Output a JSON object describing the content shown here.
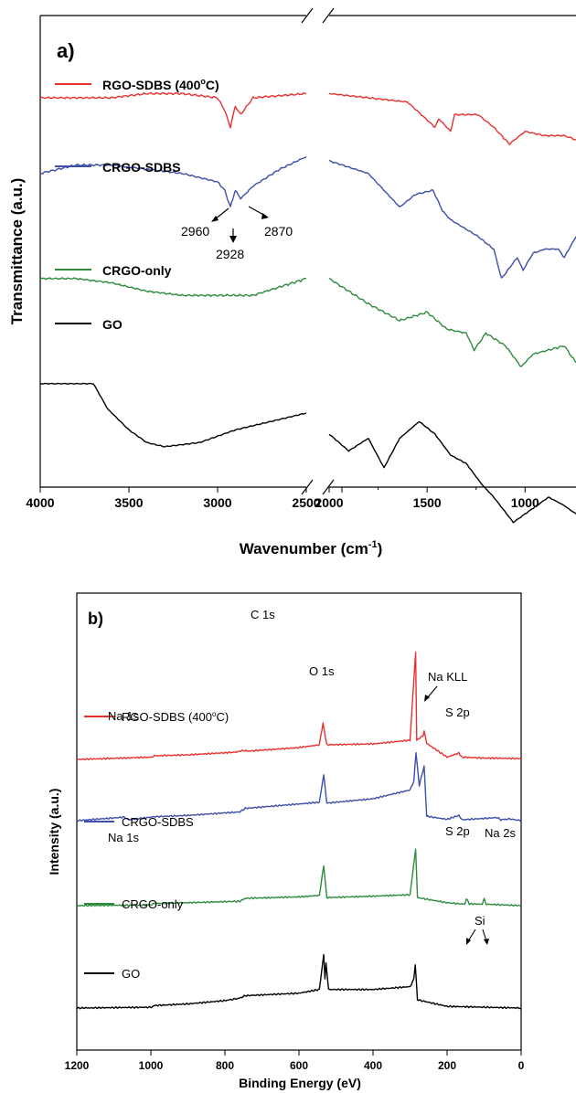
{
  "chart_data": [
    {
      "type": "line",
      "panel_label": "a)",
      "xlabel_main": "Wavenumber (cm",
      "xlabel_sup": "-1",
      "xlabel_end": ")",
      "ylabel": "Transmittance (a.u.)",
      "x_ticks_left": [
        "4000",
        "3500",
        "3000",
        "2500"
      ],
      "x_ticks_right": [
        "2500",
        "2000",
        "1500",
        "1000"
      ],
      "xlim_left": [
        4000,
        2500
      ],
      "xlim_right": [
        2000,
        740
      ],
      "series": [
        {
          "name": "RGO-SDBS (400",
          "name_sup": "o",
          "name_end": "C)",
          "color": "#e8312f",
          "points_left": [
            [
              4000,
              0.8
            ],
            [
              3800,
              0.8
            ],
            [
              3600,
              0.8
            ],
            [
              3400,
              0.81
            ],
            [
              3200,
              0.81
            ],
            [
              3000,
              0.8
            ],
            [
              2960,
              0.77
            ],
            [
              2928,
              0.73
            ],
            [
              2900,
              0.78
            ],
            [
              2870,
              0.76
            ],
            [
              2800,
              0.8
            ],
            [
              2500,
              0.81
            ]
          ],
          "points_right": [
            [
              2000,
              0.81
            ],
            [
              1800,
              0.8
            ],
            [
              1600,
              0.79
            ],
            [
              1460,
              0.73
            ],
            [
              1440,
              0.75
            ],
            [
              1380,
              0.72
            ],
            [
              1360,
              0.76
            ],
            [
              1240,
              0.76
            ],
            [
              1160,
              0.73
            ],
            [
              1080,
              0.69
            ],
            [
              1000,
              0.72
            ],
            [
              900,
              0.71
            ],
            [
              800,
              0.71
            ],
            [
              740,
              0.7
            ]
          ]
        },
        {
          "name": "CRGO-SDBS",
          "color": "#3d4fa8",
          "points_left": [
            [
              4000,
              0.62
            ],
            [
              3800,
              0.64
            ],
            [
              3600,
              0.64
            ],
            [
              3400,
              0.63
            ],
            [
              3200,
              0.62
            ],
            [
              3000,
              0.6
            ],
            [
              2960,
              0.58
            ],
            [
              2928,
              0.54
            ],
            [
              2900,
              0.58
            ],
            [
              2870,
              0.56
            ],
            [
              2800,
              0.59
            ],
            [
              2650,
              0.63
            ],
            [
              2500,
              0.66
            ]
          ],
          "points_right": [
            [
              2000,
              0.65
            ],
            [
              1800,
              0.62
            ],
            [
              1640,
              0.54
            ],
            [
              1560,
              0.57
            ],
            [
              1470,
              0.58
            ],
            [
              1420,
              0.53
            ],
            [
              1380,
              0.51
            ],
            [
              1240,
              0.47
            ],
            [
              1160,
              0.44
            ],
            [
              1120,
              0.37
            ],
            [
              1040,
              0.42
            ],
            [
              1010,
              0.39
            ],
            [
              960,
              0.43
            ],
            [
              900,
              0.44
            ],
            [
              830,
              0.44
            ],
            [
              800,
              0.42
            ],
            [
              740,
              0.47
            ]
          ]
        },
        {
          "name": "CRGO-only",
          "color": "#2e8b3e",
          "points_left": [
            [
              4000,
              0.37
            ],
            [
              3800,
              0.37
            ],
            [
              3600,
              0.36
            ],
            [
              3400,
              0.34
            ],
            [
              3200,
              0.33
            ],
            [
              3000,
              0.33
            ],
            [
              2800,
              0.33
            ],
            [
              2650,
              0.35
            ],
            [
              2500,
              0.37
            ]
          ],
          "points_right": [
            [
              2000,
              0.37
            ],
            [
              1800,
              0.31
            ],
            [
              1640,
              0.27
            ],
            [
              1500,
              0.29
            ],
            [
              1400,
              0.25
            ],
            [
              1300,
              0.24
            ],
            [
              1260,
              0.2
            ],
            [
              1200,
              0.24
            ],
            [
              1100,
              0.21
            ],
            [
              1020,
              0.16
            ],
            [
              960,
              0.19
            ],
            [
              880,
              0.2
            ],
            [
              800,
              0.21
            ],
            [
              740,
              0.17
            ]
          ]
        },
        {
          "name": "GO",
          "color": "#000000",
          "points_left": [
            [
              4000,
              0.12
            ],
            [
              3800,
              0.12
            ],
            [
              3700,
              0.12
            ],
            [
              3620,
              0.06
            ],
            [
              3500,
              0.01
            ],
            [
              3400,
              -0.02
            ],
            [
              3300,
              -0.03
            ],
            [
              3100,
              -0.02
            ],
            [
              2900,
              0.01
            ],
            [
              2700,
              0.03
            ],
            [
              2500,
              0.05
            ]
          ],
          "points_right": [
            [
              2000,
              0.0
            ],
            [
              1900,
              -0.04
            ],
            [
              1800,
              -0.01
            ],
            [
              1720,
              -0.08
            ],
            [
              1640,
              -0.01
            ],
            [
              1540,
              0.03
            ],
            [
              1460,
              0.0
            ],
            [
              1380,
              -0.05
            ],
            [
              1300,
              -0.07
            ],
            [
              1220,
              -0.12
            ],
            [
              1160,
              -0.15
            ],
            [
              1060,
              -0.21
            ],
            [
              1000,
              -0.19
            ],
            [
              880,
              -0.15
            ],
            [
              800,
              -0.17
            ],
            [
              740,
              -0.19
            ]
          ]
        }
      ],
      "annotations": [
        "2960",
        "2928",
        "2870"
      ]
    },
    {
      "type": "line",
      "panel_label": "b)",
      "xlabel": "Binding Energy (eV)",
      "ylabel": "Intensity (a.u.)",
      "x_ticks": [
        "1200",
        "1000",
        "800",
        "600",
        "400",
        "200",
        "0"
      ],
      "xlim": [
        1200,
        0
      ],
      "series": [
        {
          "name": "RGO-SDBS (400",
          "name_sup": "o",
          "name_end": "C)",
          "color": "#e8312f",
          "baseline": 0.58,
          "points": [
            [
              1200,
              0.0
            ],
            [
              1000,
              0.05
            ],
            [
              990,
              0.08
            ],
            [
              900,
              0.1
            ],
            [
              770,
              0.16
            ],
            [
              750,
              0.2
            ],
            [
              740,
              0.18
            ],
            [
              600,
              0.26
            ],
            [
              545,
              0.32
            ],
            [
              535,
              0.8
            ],
            [
              525,
              0.32
            ],
            [
              400,
              0.34
            ],
            [
              300,
              0.42
            ],
            [
              285,
              2.35
            ],
            [
              282,
              0.42
            ],
            [
              265,
              0.52
            ],
            [
              262,
              0.62
            ],
            [
              255,
              0.35
            ],
            [
              200,
              0.05
            ],
            [
              168,
              0.14
            ],
            [
              160,
              0.05
            ],
            [
              100,
              0.03
            ],
            [
              0,
              0.02
            ]
          ]
        },
        {
          "name": "CRGO-SDBS",
          "color": "#3d4fa8",
          "baseline": 0.36,
          "points": [
            [
              1200,
              0.0
            ],
            [
              1072,
              0.08
            ],
            [
              1060,
              0.02
            ],
            [
              990,
              0.09
            ],
            [
              900,
              0.12
            ],
            [
              760,
              0.2
            ],
            [
              745,
              0.28
            ],
            [
              600,
              0.38
            ],
            [
              545,
              0.42
            ],
            [
              533,
              1.05
            ],
            [
              525,
              0.4
            ],
            [
              400,
              0.5
            ],
            [
              300,
              0.7
            ],
            [
              290,
              0.9
            ],
            [
              284,
              1.55
            ],
            [
              275,
              0.8
            ],
            [
              262,
              1.25
            ],
            [
              255,
              0.1
            ],
            [
              200,
              0.03
            ],
            [
              168,
              0.12
            ],
            [
              160,
              0.02
            ],
            [
              64,
              0.07
            ],
            [
              55,
              0.02
            ],
            [
              30,
              0.04
            ],
            [
              0,
              0.0
            ]
          ]
        },
        {
          "name": "CRGO-only",
          "color": "#2e8b3e",
          "baseline": 0.18,
          "points": [
            [
              1200,
              0.0
            ],
            [
              1000,
              0.02
            ],
            [
              990,
              0.06
            ],
            [
              900,
              0.08
            ],
            [
              760,
              0.12
            ],
            [
              745,
              0.2
            ],
            [
              600,
              0.24
            ],
            [
              545,
              0.28
            ],
            [
              533,
              1.1
            ],
            [
              525,
              0.22
            ],
            [
              400,
              0.26
            ],
            [
              300,
              0.3
            ],
            [
              285,
              1.55
            ],
            [
              280,
              0.22
            ],
            [
              200,
              0.08
            ],
            [
              152,
              0.04
            ],
            [
              148,
              0.2
            ],
            [
              140,
              0.05
            ],
            [
              105,
              0.04
            ],
            [
              100,
              0.2
            ],
            [
              95,
              0.04
            ],
            [
              0,
              0.0
            ]
          ]
        },
        {
          "name": "GO",
          "color": "#000000",
          "baseline": 0.0,
          "points": [
            [
              1200,
              0.0
            ],
            [
              1000,
              0.02
            ],
            [
              990,
              0.06
            ],
            [
              900,
              0.1
            ],
            [
              800,
              0.18
            ],
            [
              760,
              0.24
            ],
            [
              745,
              0.3
            ],
            [
              600,
              0.36
            ],
            [
              545,
              0.45
            ],
            [
              533,
              1.3
            ],
            [
              530,
              0.7
            ],
            [
              527,
              1.1
            ],
            [
              520,
              0.45
            ],
            [
              400,
              0.45
            ],
            [
              300,
              0.52
            ],
            [
              290,
              0.7
            ],
            [
              286,
              1.05
            ],
            [
              280,
              0.2
            ],
            [
              200,
              0.04
            ],
            [
              0,
              0.0
            ]
          ]
        }
      ],
      "annotations": [
        "O 1s",
        "C 1s",
        "Na KLL",
        "Na 1s",
        "S 2p",
        "Na 1s",
        "S 2p",
        "Na 2s",
        "Si"
      ]
    }
  ]
}
